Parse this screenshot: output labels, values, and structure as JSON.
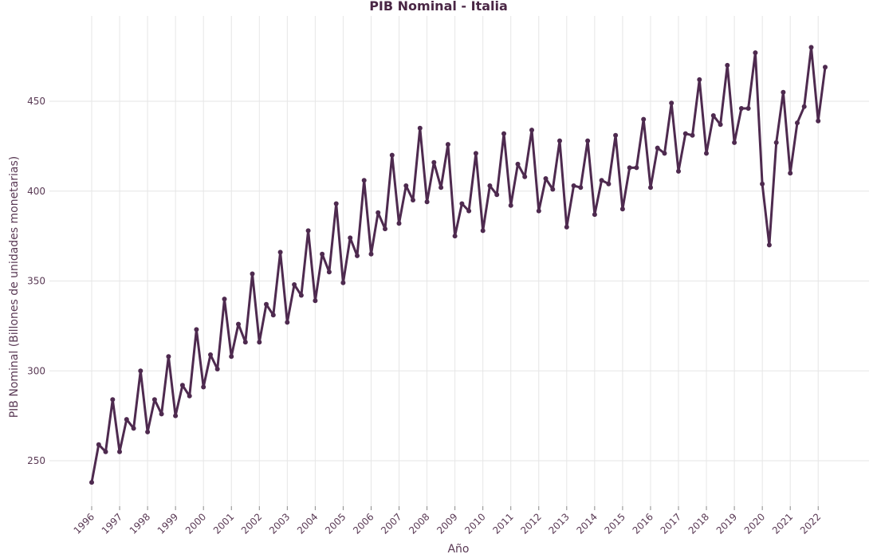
{
  "chart_data": {
    "type": "line",
    "title": "PIB Nominal - Italia",
    "xlabel": "Año",
    "ylabel": "PIB Nominal (Billones de unidades monetarias)",
    "line_color": "#4e2a4f",
    "grid": true,
    "legend": "none",
    "xlim": [
      1996,
      2022.25
    ],
    "ylim": [
      228,
      492
    ],
    "x_ticks": [
      1996,
      1997,
      1998,
      1999,
      2000,
      2001,
      2002,
      2003,
      2004,
      2005,
      2006,
      2007,
      2008,
      2009,
      2010,
      2011,
      2012,
      2013,
      2014,
      2015,
      2016,
      2017,
      2018,
      2019,
      2020,
      2021,
      2022
    ],
    "x_tick_labels": [
      "1996",
      "1997",
      "1998",
      "1999",
      "2000",
      "2001",
      "2002",
      "2003",
      "2004",
      "2005",
      "2006",
      "2007",
      "2008",
      "2009",
      "2010",
      "2011",
      "2012",
      "2013",
      "2014",
      "2015",
      "2016",
      "2017",
      "2018",
      "2019",
      "2020",
      "2021",
      "2022"
    ],
    "y_ticks": [
      250,
      300,
      350,
      400,
      450
    ],
    "y_tick_labels": [
      "250",
      "300",
      "350",
      "400",
      "450"
    ],
    "series": [
      {
        "x": [
          1996.0,
          1996.25,
          1996.5,
          1996.75,
          1997.0,
          1997.25,
          1997.5,
          1997.75,
          1998.0,
          1998.25,
          1998.5,
          1998.75,
          1999.0,
          1999.25,
          1999.5,
          1999.75,
          2000.0,
          2000.25,
          2000.5,
          2000.75,
          2001.0,
          2001.25,
          2001.5,
          2001.75,
          2002.0,
          2002.25,
          2002.5,
          2002.75,
          2003.0,
          2003.25,
          2003.5,
          2003.75,
          2004.0,
          2004.25,
          2004.5,
          2004.75,
          2005.0,
          2005.25,
          2005.5,
          2005.75,
          2006.0,
          2006.25,
          2006.5,
          2006.75,
          2007.0,
          2007.25,
          2007.5,
          2007.75,
          2008.0,
          2008.25,
          2008.5,
          2008.75,
          2009.0,
          2009.25,
          2009.5,
          2009.75,
          2010.0,
          2010.25,
          2010.5,
          2010.75,
          2011.0,
          2011.25,
          2011.5,
          2011.75,
          2012.0,
          2012.25,
          2012.5,
          2012.75,
          2013.0,
          2013.25,
          2013.5,
          2013.75,
          2014.0,
          2014.25,
          2014.5,
          2014.75,
          2015.0,
          2015.25,
          2015.5,
          2015.75,
          2016.0,
          2016.25,
          2016.5,
          2016.75,
          2017.0,
          2017.25,
          2017.5,
          2017.75,
          2018.0,
          2018.25,
          2018.5,
          2018.75,
          2019.0,
          2019.25,
          2019.5,
          2019.75,
          2020.0,
          2020.25,
          2020.5,
          2020.75,
          2021.0,
          2021.25,
          2021.5,
          2021.75,
          2022.0,
          2022.25
        ],
        "values": [
          238,
          259,
          255,
          284,
          255,
          273,
          268,
          300,
          266,
          284,
          276,
          308,
          275,
          292,
          286,
          323,
          291,
          309,
          301,
          340,
          308,
          326,
          316,
          354,
          316,
          337,
          331,
          366,
          327,
          348,
          342,
          378,
          339,
          365,
          355,
          393,
          349,
          374,
          364,
          406,
          365,
          388,
          379,
          420,
          382,
          403,
          395,
          435,
          394,
          416,
          402,
          426,
          375,
          393,
          389,
          421,
          378,
          403,
          398,
          432,
          392,
          415,
          408,
          434,
          389,
          407,
          401,
          428,
          380,
          403,
          402,
          428,
          387,
          406,
          404,
          431,
          390,
          413,
          413,
          440,
          402,
          424,
          421,
          449,
          411,
          432,
          431,
          462,
          421,
          442,
          437,
          470,
          427,
          446,
          446,
          477,
          404,
          370,
          427,
          455,
          410,
          438,
          447,
          480,
          439,
          469
        ]
      }
    ]
  }
}
